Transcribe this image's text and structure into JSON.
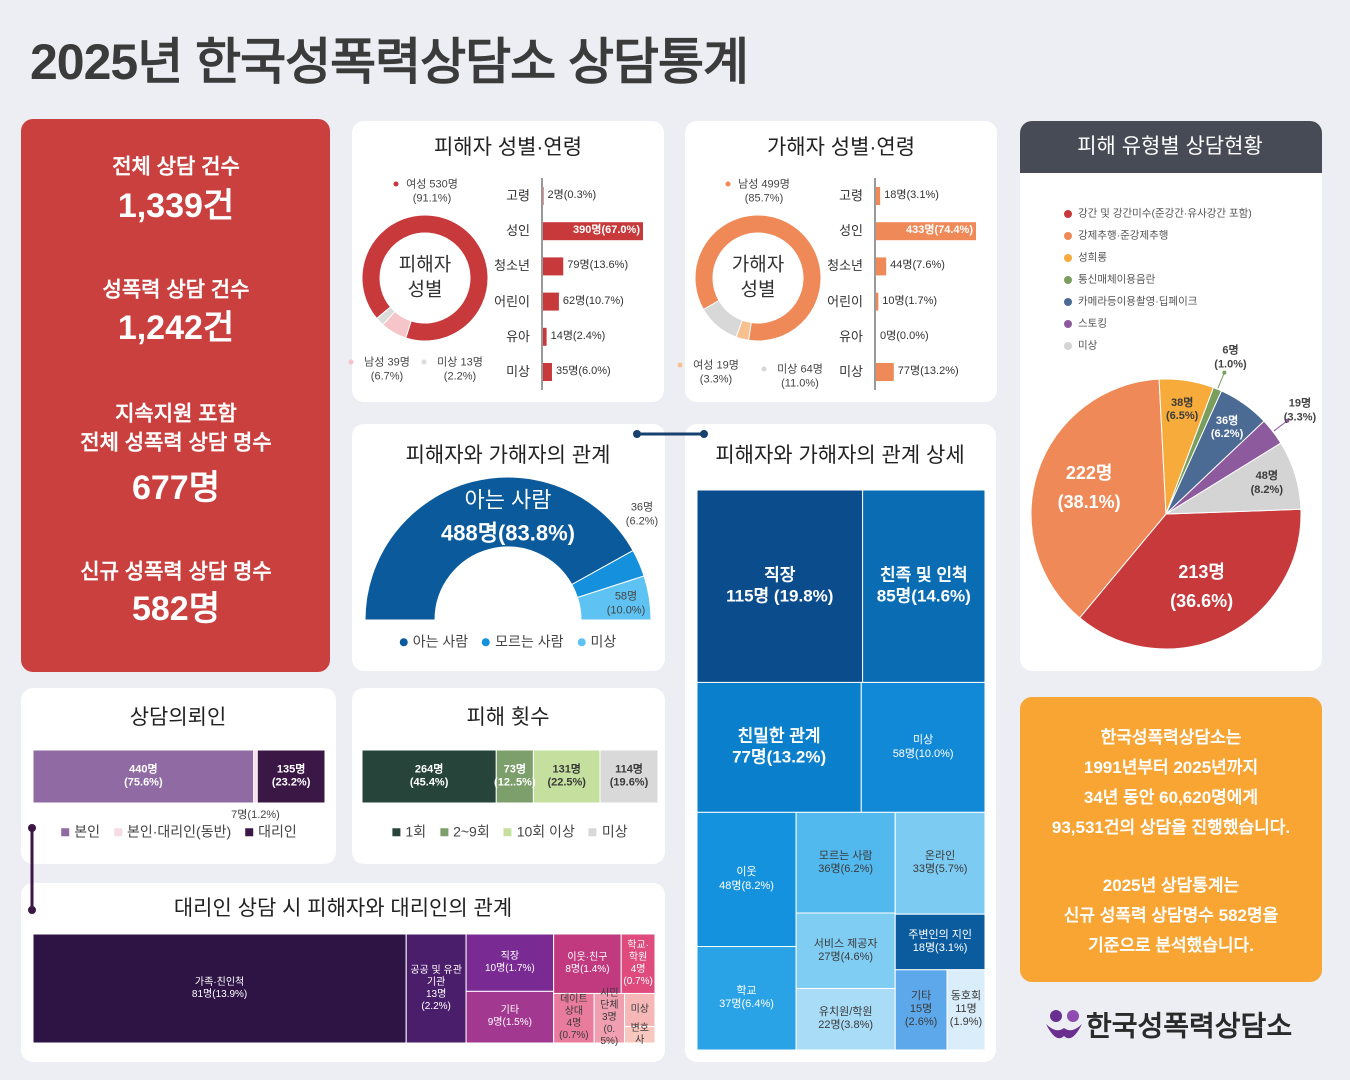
{
  "title": "2025년 한국성폭력상담소 상담통계",
  "summary": [
    {
      "label": "전체 상담 건수",
      "value": "1,339건"
    },
    {
      "label": "성폭력 상담 건수",
      "value": "1,242건"
    },
    {
      "label": "지속지원 포함\n전체 성폭력 상담 명수",
      "value": "677명"
    },
    {
      "label": "신규 성폭력 상담 명수",
      "value": "582명"
    }
  ],
  "chart_data": [
    {
      "type": "donut",
      "title": "피해자 성별·연령",
      "center_label": "피해자\n성별",
      "categories": [
        "여성",
        "남성",
        "미상"
      ],
      "values": [
        530,
        39,
        13
      ],
      "value_labels": [
        "530명\n(91.1%)",
        "39명\n(6.7%)",
        "13명\n(2.2%)"
      ],
      "colors": [
        "#c8393b",
        "#f6c5c9",
        "#dcdcdc"
      ]
    },
    {
      "type": "bar",
      "orientation": "horizontal",
      "categories": [
        "고령",
        "성인",
        "청소년",
        "어린이",
        "유아",
        "미상"
      ],
      "values": [
        2,
        390,
        79,
        62,
        14,
        35
      ],
      "value_labels": [
        "2명(0.3%)",
        "390명(67.0%)",
        "79명(13.6%)",
        "62명(10.7%)",
        "14명(2.4%)",
        "35명(6.0%)"
      ],
      "color": "#c8393b"
    },
    {
      "type": "donut",
      "title": "가해자 성별·연령",
      "center_label": "가해자\n성별",
      "categories": [
        "남성",
        "여성",
        "미상"
      ],
      "values": [
        499,
        19,
        64
      ],
      "value_labels": [
        "499명\n(85.7%)",
        "19명\n(3.3%)",
        "64명\n(11.0%)"
      ],
      "colors": [
        "#ef8a58",
        "#f8c08e",
        "#d8d8d8"
      ]
    },
    {
      "type": "bar",
      "orientation": "horizontal",
      "categories": [
        "고령",
        "성인",
        "청소년",
        "어린이",
        "유아",
        "미상"
      ],
      "values": [
        18,
        433,
        44,
        10,
        0,
        77
      ],
      "value_labels": [
        "18명(3.1%)",
        "433명(74.4%)",
        "44명(7.6%)",
        "10명(1.7%)",
        "0명(0.0%)",
        "77명(13.2%)"
      ],
      "color": "#ef8a58"
    },
    {
      "type": "semi_donut",
      "title": "피해자와 가해자의 관계",
      "categories": [
        "아는 사람",
        "모르는 사람",
        "미상"
      ],
      "values": [
        488,
        36,
        58
      ],
      "value_labels": [
        "488명(83.8%)",
        "36명\n(6.2%)",
        "58명\n(10.0%)"
      ],
      "colors": [
        "#0a5a9c",
        "#1590dd",
        "#5ec3f2"
      ],
      "legend": "bottom"
    },
    {
      "type": "treemap",
      "title": "피해자와 가해자의 관계 상세",
      "categories": [
        "직장",
        "친족 및 인척",
        "친밀한 관계",
        "미상",
        "이웃",
        "모르는 사람",
        "온라인",
        "주변인의 지인",
        "학교",
        "서비스 제공자",
        "유치원/학원",
        "기타",
        "동호회"
      ],
      "values": [
        115,
        85,
        77,
        58,
        48,
        36,
        33,
        18,
        37,
        27,
        22,
        15,
        11
      ],
      "value_labels": [
        "115명 (19.8%)",
        "85명(14.6%)",
        "77명(13.2%)",
        "58명(10.0%)",
        "48명(8.2%)",
        "36명(6.2%)",
        "33명(5.7%)",
        "18명(3.1%)",
        "37명(6.4%)",
        "27명(4.6%)",
        "22명(3.8%)",
        "15명\n(2.6%)",
        "11명\n(1.9%)"
      ],
      "colors": [
        "#0b4c8c",
        "#0a6db3",
        "#0a7fcc",
        "#1289d6",
        "#1592de",
        "#52b9ef",
        "#7ccbf2",
        "#0b5c9e",
        "#29a3e6",
        "#80cdf3",
        "#a9dcf6",
        "#5da8ea",
        "#d9edfa"
      ]
    },
    {
      "type": "bar",
      "stacked": true,
      "orientation": "horizontal",
      "title": "상담의뢰인",
      "legend": "bottom",
      "series": [
        {
          "name": "본인",
          "color": "#8f6aa3",
          "values": [
            440
          ],
          "value_labels": [
            "440명\n(75.6%)"
          ]
        },
        {
          "name": "본인·대리인(동반)",
          "color": "#f6dde4",
          "values": [
            7
          ],
          "value_labels": [
            "7명(1.2%)"
          ]
        },
        {
          "name": "대리인",
          "color": "#3b1746",
          "values": [
            135
          ],
          "value_labels": [
            "135명\n(23.2%)"
          ]
        }
      ]
    },
    {
      "type": "bar",
      "stacked": true,
      "orientation": "horizontal",
      "title": "피해 횟수",
      "legend": "bottom",
      "series": [
        {
          "name": "1회",
          "color": "#26443a",
          "values": [
            264
          ],
          "value_labels": [
            "264명\n(45.4%)"
          ]
        },
        {
          "name": "2~9회",
          "color": "#7d9f6b",
          "values": [
            73
          ],
          "value_labels": [
            "73명\n(12..5%)"
          ]
        },
        {
          "name": "10회 이상",
          "color": "#c5df9f",
          "values": [
            131
          ],
          "value_labels": [
            "131명\n(22.5%)"
          ]
        },
        {
          "name": "미상",
          "color": "#d9d9d9",
          "values": [
            114
          ],
          "value_labels": [
            "114명\n(19.6%)"
          ]
        }
      ]
    },
    {
      "type": "treemap",
      "title": "대리인 상담 시 피해자와 대리인의 관계",
      "categories": [
        "가족·친인척",
        "공공 및 유관기관",
        "직장",
        "기타",
        "이웃·친구",
        "학교·학원",
        "데이트 상대",
        "시민단체",
        "미상",
        "변호사"
      ],
      "values": [
        81,
        13,
        10,
        9,
        8,
        4,
        4,
        3,
        2,
        1
      ],
      "value_labels": [
        "81명(13.9%)",
        "13명\n(2.2%)",
        "10명(1.7%)",
        "9명(1.5%)",
        "8명(1.4%)",
        "4명\n(0.7%)",
        "4명\n(0.7%)",
        "3명\n(0.5%)",
        null,
        null
      ],
      "colors": [
        "#2e1445",
        "#4b1e6c",
        "#7a2b93",
        "#a33891",
        "#c13a80",
        "#de4b7c",
        "#e97c9c",
        "#f09fb0",
        "#f6b7b7",
        "#f8c7bd"
      ]
    },
    {
      "type": "pie",
      "title": "피해 유형별 상담현황",
      "legend": "top-left",
      "categories": [
        "강간 및 강간미수(준강간·유사강간 포함)",
        "강제추행·준강제추행",
        "성희롱",
        "통신매체이용음란",
        "카메라등이용촬영·딥페이크",
        "스토킹",
        "미상"
      ],
      "values": [
        213,
        222,
        38,
        6,
        36,
        19,
        48
      ],
      "value_labels": [
        "213명\n(36.6%)",
        "222명\n(38.1%)",
        "38명\n(6.5%)",
        "6명\n(1.0%)",
        "36명\n(6.2%)",
        "19명\n(3.3%)",
        "48명\n(8.2%)"
      ],
      "colors": [
        "#c8393b",
        "#ef8a58",
        "#f6ab3a",
        "#7a9e5e",
        "#4b6a94",
        "#8e5a9e",
        "#d4d4d4"
      ]
    }
  ],
  "note": [
    "한국성폭력상담소는\n1991년부터 2025년까지\n34년 동안 60,620명에게\n93,531건의 상담을 진행했습니다.",
    "2025년 상담통계는\n신규 성폭력 상담명수 582명을\n기준으로 분석했습니다."
  ],
  "logo": "한국성폭력상담소"
}
